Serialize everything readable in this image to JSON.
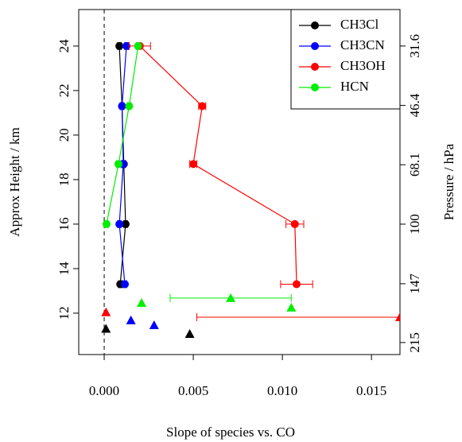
{
  "chart_data": {
    "type": "profile",
    "xlabel": "Slope of species vs. CO",
    "ylabel": "Approx Height / km",
    "y2label": "Pressure / hPa",
    "xlim": [
      -0.00143,
      0.0166
    ],
    "ylim": [
      10.14,
      25.64
    ],
    "y2lim": [
      232.4,
      24.96
    ],
    "y2log": true,
    "xticks": [
      {
        "value": 0,
        "label": "0.000"
      },
      {
        "value": 0.005,
        "label": "0.005"
      },
      {
        "value": 0.01,
        "label": "0.010"
      },
      {
        "value": 0.015,
        "label": "0.015"
      }
    ],
    "yticks": [
      12,
      14,
      16,
      18,
      20,
      22,
      24
    ],
    "y2ticks": [
      31.6,
      46.4,
      68.1,
      100,
      147,
      215
    ],
    "vline": 0,
    "legend": "top-right",
    "series": [
      {
        "name": "CH3Cl",
        "color": "#000000",
        "x": [
          0.00085,
          0.001,
          0.0011,
          0.0012,
          0.0009
        ],
        "y": [
          24,
          21.3,
          18.7,
          16,
          13.3
        ],
        "errors": [
          0.0001,
          0.0001,
          0.0001,
          0.0001,
          0.0001
        ]
      },
      {
        "name": "CH3CN",
        "color": "#0000ff",
        "x": [
          0.00125,
          0.001,
          0.00107,
          0.00085,
          0.00116
        ],
        "y": [
          24,
          21.3,
          18.7,
          16,
          13.3
        ],
        "errors": [
          0.0001,
          0.0001,
          0.0001,
          0.0001,
          0.0001
        ]
      },
      {
        "name": "CH3OH",
        "color": "#ff0000",
        "x": [
          0.002,
          0.0055,
          0.005,
          0.0107,
          0.0108
        ],
        "y": [
          24,
          21.3,
          18.7,
          16,
          13.3
        ],
        "errors": [
          0.0006,
          0.0002,
          0.0002,
          0.0005,
          0.0009
        ]
      },
      {
        "name": "HCN",
        "color": "#00ee00",
        "x": [
          0.0019,
          0.0014,
          0.0008,
          0.00013
        ],
        "y": [
          24,
          21.3,
          18.7,
          16
        ],
        "errors": [
          0.0001,
          0.0001,
          0.0001,
          0.0001
        ]
      }
    ],
    "points": [
      {
        "color": "#000000",
        "x": [
          0.0001,
          0.0048
        ],
        "y": [
          11.3,
          11.07
        ],
        "errors": [
          0,
          0
        ]
      },
      {
        "color": "#0000ff",
        "x": [
          0.0015,
          0.0028
        ],
        "y": [
          11.68,
          11.46
        ],
        "errors": [
          0,
          0
        ]
      },
      {
        "color": "#ff0000",
        "x": [
          0.0001,
          0.0166
        ],
        "y": [
          12.04,
          11.82
        ],
        "errors": [
          0,
          0.0114
        ]
      },
      {
        "color": "#00ee00",
        "x": [
          0.0021,
          0.0071,
          0.0105
        ],
        "y": [
          12.46,
          12.68,
          12.25
        ],
        "errors": [
          0,
          0.0034,
          0
        ]
      }
    ]
  }
}
